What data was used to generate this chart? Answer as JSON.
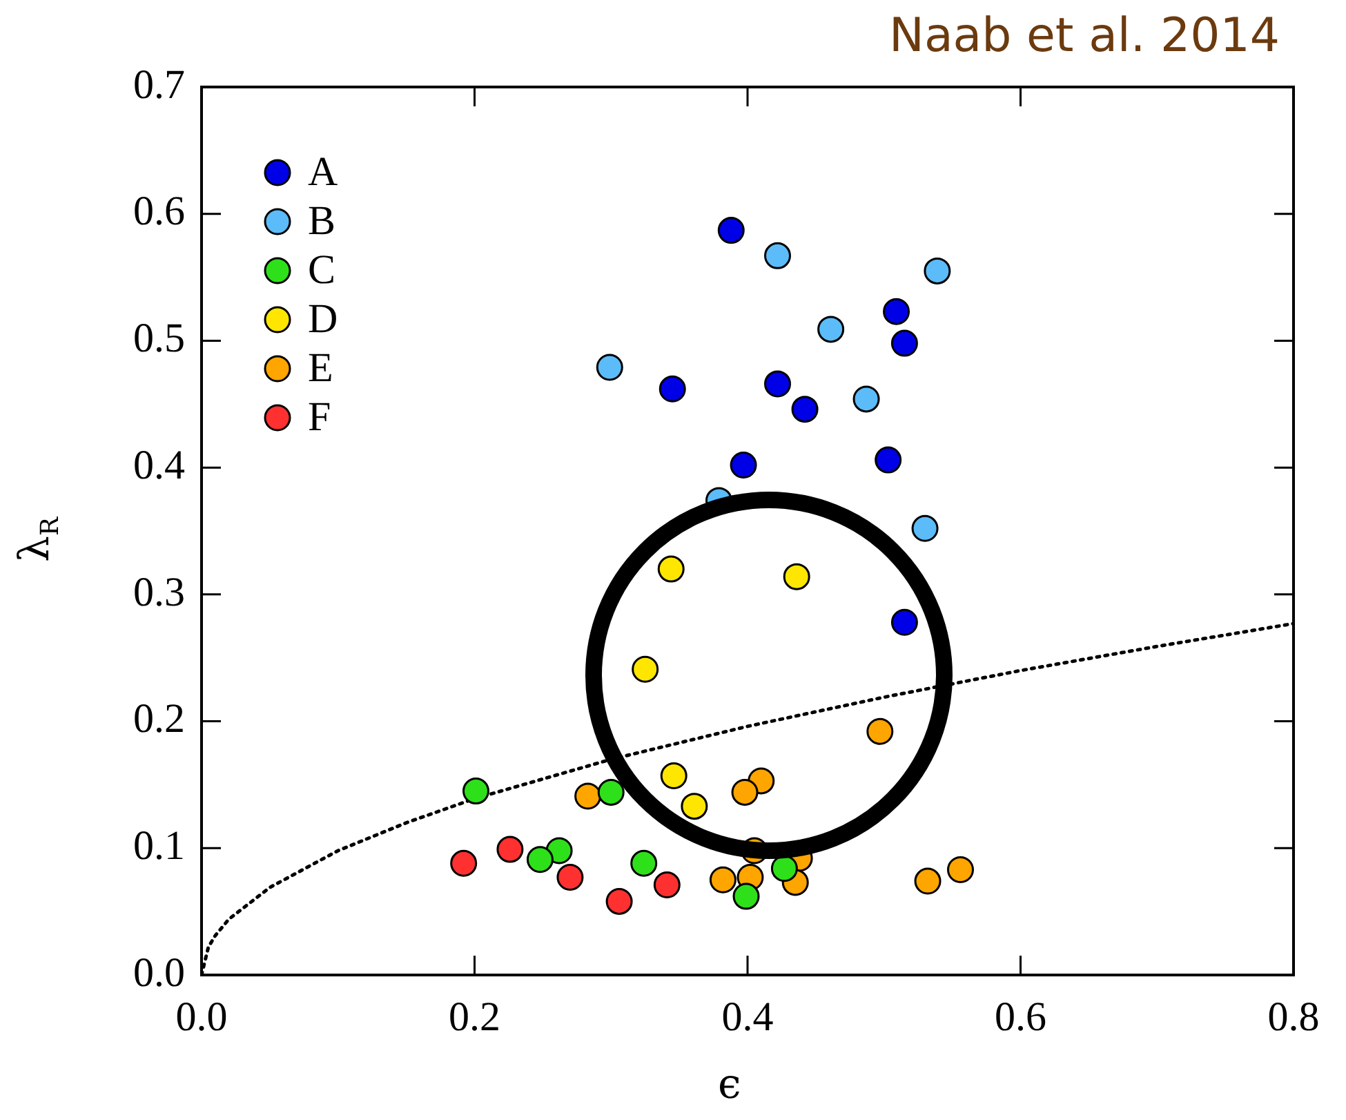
{
  "chart_data": {
    "type": "scatter",
    "title": "Naab et al. 2014",
    "xlabel": "ϵ",
    "ylabel": "λ$_{R}$",
    "xlim": [
      0,
      0.8
    ],
    "xticks": [
      {
        "value": 0,
        "label": "0.0"
      },
      0.2,
      0.4,
      0.6,
      0.8
    ],
    "ylim": [
      0,
      0.7
    ],
    "yticks": [
      {
        "value": 0,
        "label": "0.0"
      },
      0.1,
      0.2,
      0.3,
      0.4,
      0.5,
      0.6,
      0.7
    ],
    "grid": false,
    "legend": "top left",
    "marker": "circle",
    "series": [
      {
        "name": "A",
        "color": "#0000e6",
        "x": [
          0.388,
          0.509,
          0.515,
          0.345,
          0.422,
          0.442,
          0.397,
          0.503,
          0.515
        ],
        "values": [
          0.587,
          0.523,
          0.498,
          0.462,
          0.466,
          0.446,
          0.402,
          0.406,
          0.278
        ]
      },
      {
        "name": "B",
        "color": "#5bbcf9",
        "x": [
          0.422,
          0.539,
          0.461,
          0.299,
          0.487,
          0.379,
          0.53
        ],
        "values": [
          0.567,
          0.555,
          0.509,
          0.479,
          0.454,
          0.374,
          0.352
        ]
      },
      {
        "name": "C",
        "color": "#2ee01a",
        "x": [
          0.201,
          0.3,
          0.427,
          0.399,
          0.324,
          0.262,
          0.248
        ],
        "values": [
          0.145,
          0.144,
          0.084,
          0.062,
          0.088,
          0.098,
          0.091
        ]
      },
      {
        "name": "D",
        "color": "#ffe600",
        "x": [
          0.344,
          0.436,
          0.325,
          0.346,
          0.361
        ],
        "values": [
          0.32,
          0.314,
          0.241,
          0.157,
          0.133
        ]
      },
      {
        "name": "E",
        "color": "#ffa500",
        "x": [
          0.497,
          0.41,
          0.398,
          0.283,
          0.405,
          0.438,
          0.382,
          0.402,
          0.435,
          0.532,
          0.556
        ],
        "values": [
          0.192,
          0.153,
          0.144,
          0.141,
          0.098,
          0.092,
          0.075,
          0.077,
          0.073,
          0.074,
          0.083
        ]
      },
      {
        "name": "F",
        "color": "#ff3030",
        "x": [
          0.341,
          0.306,
          0.27,
          0.226,
          0.192
        ],
        "values": [
          0.071,
          0.058,
          0.077,
          0.099,
          0.088
        ]
      },
      {
        "type": "line",
        "color": "#000000",
        "line_style": "dotted",
        "marker": "none",
        "x": [
          0,
          0.005,
          0.01,
          0.02,
          0.05,
          0.1,
          0.15,
          0.2,
          0.3,
          0.4,
          0.5,
          0.6,
          0.7,
          0.8
        ],
        "values": [
          0,
          0.022,
          0.031,
          0.044,
          0.069,
          0.098,
          0.12,
          0.139,
          0.17,
          0.196,
          0.219,
          0.24,
          0.259,
          0.277
        ]
      }
    ]
  }
}
